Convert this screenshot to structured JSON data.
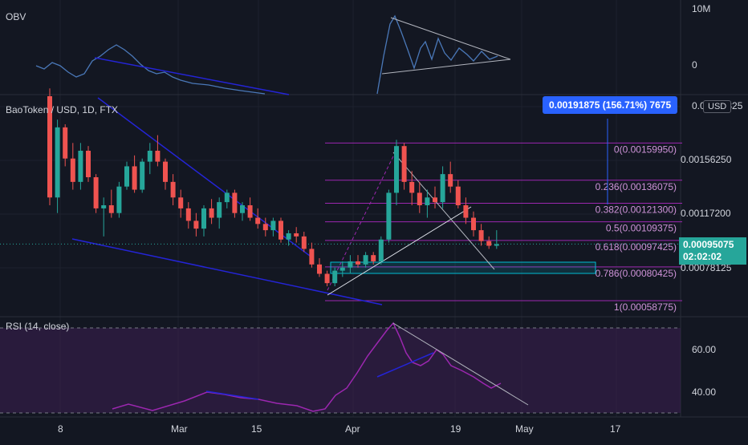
{
  "colors": {
    "background": "#131722",
    "grid": "#1e222d",
    "up": "#26a69a",
    "down": "#ef5350",
    "fib": "#9c27b0",
    "fib_text": "#ce93d8",
    "trend": "#2424d6",
    "obv_line": "#4a78b8",
    "rsi_line": "#9c27b0",
    "rsi_fill": "#3c1f52",
    "measure": "#2962ff"
  },
  "header": {
    "symbol": "BaoToken / USD, 1D, FTX",
    "currency_badge": "USD"
  },
  "obv": {
    "title": "OBV",
    "axis_labels": [
      "10M",
      "0"
    ]
  },
  "rsi": {
    "title": "RSI (14, close)",
    "axis_labels": [
      "60.00",
      "40.00"
    ]
  },
  "price_axis_labels": [
    "0.00195325",
    "0.00156250",
    "0.00117200",
    "0.00078125"
  ],
  "last_price": {
    "value": "0.00095075",
    "countdown": "02:02:02"
  },
  "measure_tooltip": "0.00191875 (156.71%) 7675",
  "fib_levels": [
    {
      "label": "0(0.00159950)",
      "price": 0.0015995
    },
    {
      "label": "0.236(0.00136075)",
      "price": 0.00136075
    },
    {
      "label": "0.382(0.00121300)",
      "price": 0.001213
    },
    {
      "label": "0.5(0.00109375)",
      "price": 0.00109375
    },
    {
      "label": "0.618(0.00097425)",
      "price": 0.00097425
    },
    {
      "label": "0.786(0.00080425)",
      "price": 0.00080425
    },
    {
      "label": "1(0.00058775)",
      "price": 0.00058775
    }
  ],
  "x_axis_labels": [
    "8",
    "Mar",
    "15",
    "Apr",
    "19",
    "May",
    "17"
  ],
  "chart_data": {
    "type": "candlestick",
    "title": "BaoToken / USD, 1D, FTX",
    "ylim": [
      0.0005,
      0.0019
    ],
    "x_ticks": [
      "8",
      "Mar",
      "15",
      "Apr",
      "19",
      "May",
      "17"
    ],
    "y_ticks": [
      0.00195325,
      0.0015625,
      0.001172,
      0.00078125
    ],
    "candles": [
      [
        0.0019,
        0.00195,
        0.0012,
        0.00125
      ],
      [
        0.00125,
        0.00175,
        0.00115,
        0.0017
      ],
      [
        0.0017,
        0.00172,
        0.00145,
        0.0015
      ],
      [
        0.0015,
        0.0016,
        0.0013,
        0.00135
      ],
      [
        0.00135,
        0.0016,
        0.0013,
        0.00155
      ],
      [
        0.00155,
        0.00158,
        0.00135,
        0.00138
      ],
      [
        0.00138,
        0.0014,
        0.00115,
        0.00118
      ],
      [
        0.00118,
        0.00125,
        0.001,
        0.0012
      ],
      [
        0.0012,
        0.0013,
        0.00112,
        0.00115
      ],
      [
        0.00115,
        0.00135,
        0.00112,
        0.00132
      ],
      [
        0.00132,
        0.00148,
        0.0013,
        0.00145
      ],
      [
        0.00145,
        0.00152,
        0.00128,
        0.0013
      ],
      [
        0.0013,
        0.0015,
        0.00128,
        0.00148
      ],
      [
        0.00148,
        0.0016,
        0.0014,
        0.00155
      ],
      [
        0.00155,
        0.00165,
        0.00145,
        0.00148
      ],
      [
        0.00148,
        0.0015,
        0.0013,
        0.00135
      ],
      [
        0.00135,
        0.0014,
        0.0012,
        0.00125
      ],
      [
        0.00125,
        0.0013,
        0.00112,
        0.00118
      ],
      [
        0.00118,
        0.00122,
        0.00105,
        0.0011
      ],
      [
        0.0011,
        0.00115,
        0.001,
        0.00105
      ],
      [
        0.00105,
        0.0012,
        0.001,
        0.00118
      ],
      [
        0.00118,
        0.00124,
        0.00108,
        0.00112
      ],
      [
        0.00112,
        0.00125,
        0.00105,
        0.00122
      ],
      [
        0.00122,
        0.0013,
        0.00118,
        0.00128
      ],
      [
        0.00128,
        0.0013,
        0.00112,
        0.00115
      ],
      [
        0.00115,
        0.00122,
        0.0011,
        0.0012
      ],
      [
        0.0012,
        0.00125,
        0.0011,
        0.00112
      ],
      [
        0.00112,
        0.00118,
        0.00105,
        0.00108
      ],
      [
        0.00108,
        0.00112,
        0.001,
        0.00104
      ],
      [
        0.00104,
        0.00112,
        0.001,
        0.0011
      ],
      [
        0.0011,
        0.00112,
        0.00096,
        0.00098
      ],
      [
        0.00098,
        0.00104,
        0.00094,
        0.00102
      ],
      [
        0.00102,
        0.00106,
        0.00096,
        0.001
      ],
      [
        0.001,
        0.00103,
        0.0009,
        0.00092
      ],
      [
        0.00092,
        0.00096,
        0.0008,
        0.00082
      ],
      [
        0.00082,
        0.00086,
        0.00074,
        0.00076
      ],
      [
        0.00076,
        0.00078,
        0.00068,
        0.0007
      ],
      [
        0.0007,
        0.0008,
        0.00068,
        0.00078
      ],
      [
        0.00078,
        0.00084,
        0.00074,
        0.0008
      ],
      [
        0.0008,
        0.00088,
        0.00076,
        0.00084
      ],
      [
        0.00084,
        0.00088,
        0.0008,
        0.00082
      ],
      [
        0.00082,
        0.0009,
        0.0008,
        0.00088
      ],
      [
        0.00088,
        0.0009,
        0.00082,
        0.00084
      ],
      [
        0.00084,
        0.001,
        0.00082,
        0.00098
      ],
      [
        0.00098,
        0.0013,
        0.00096,
        0.00128
      ],
      [
        0.00128,
        0.00162,
        0.0012,
        0.00158
      ],
      [
        0.00158,
        0.0016,
        0.0013,
        0.00135
      ],
      [
        0.00135,
        0.00142,
        0.0012,
        0.00128
      ],
      [
        0.00128,
        0.00135,
        0.00115,
        0.0012
      ],
      [
        0.0012,
        0.0013,
        0.00112,
        0.00125
      ],
      [
        0.00125,
        0.00132,
        0.00118,
        0.00122
      ],
      [
        0.00122,
        0.00145,
        0.00118,
        0.0014
      ],
      [
        0.0014,
        0.00148,
        0.00128,
        0.00132
      ],
      [
        0.00132,
        0.00136,
        0.00118,
        0.0012
      ],
      [
        0.0012,
        0.00125,
        0.00108,
        0.00112
      ],
      [
        0.00112,
        0.00116,
        0.001,
        0.00104
      ],
      [
        0.00104,
        0.00108,
        0.00094,
        0.00097
      ],
      [
        0.00097,
        0.001,
        0.00092,
        0.00094
      ],
      [
        0.00094,
        0.00104,
        0.00092,
        0.00095
      ]
    ]
  }
}
